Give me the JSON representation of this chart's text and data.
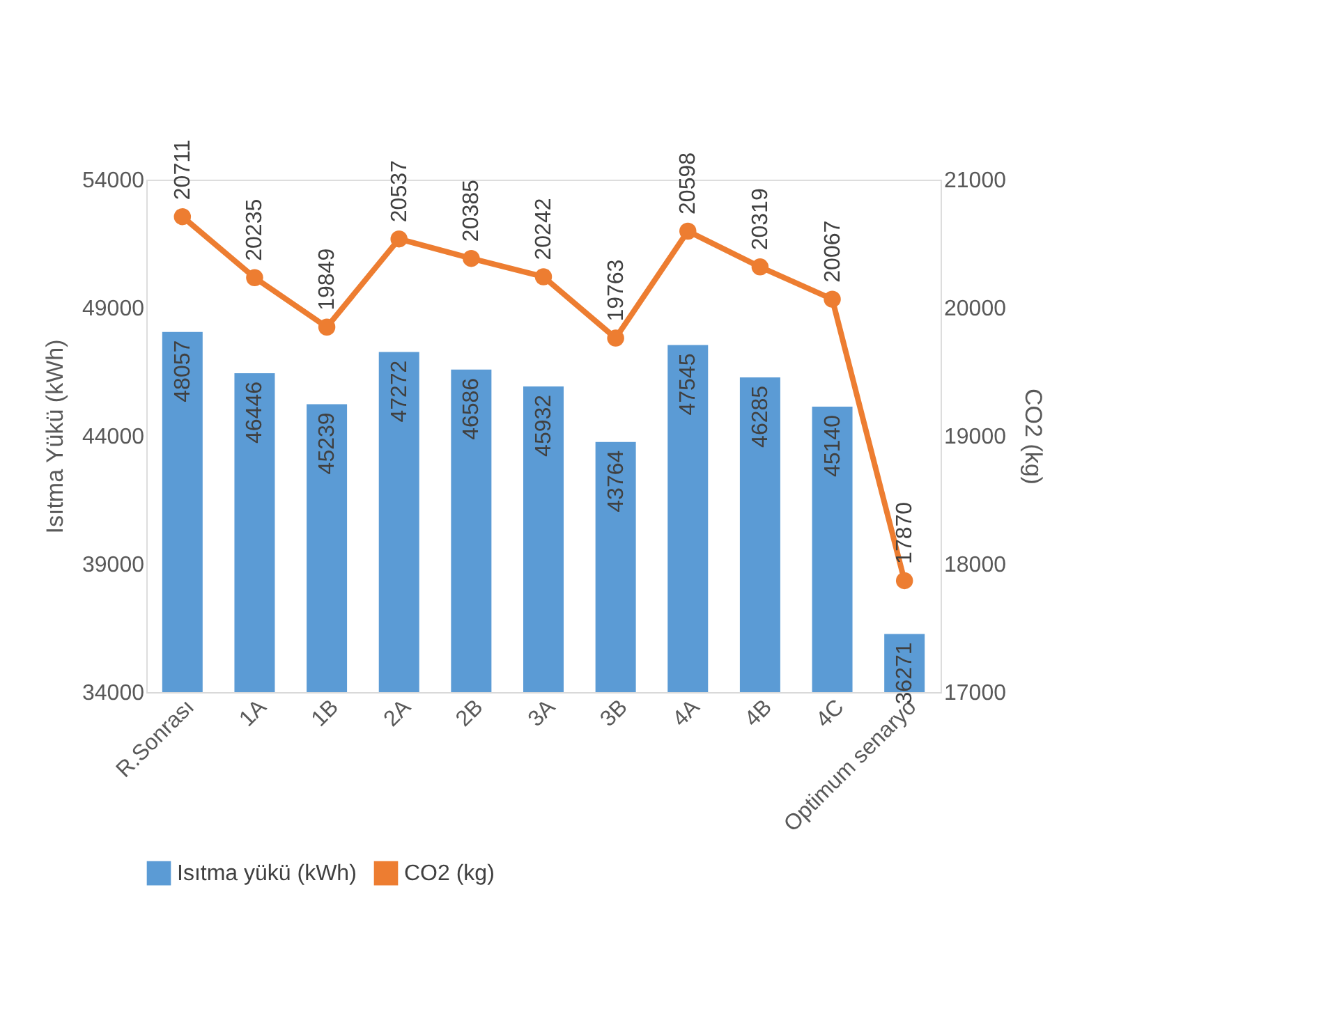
{
  "chart_data": {
    "type": "bar",
    "categories": [
      "R.Sonrası",
      "1A",
      "1B",
      "2A",
      "2B",
      "3A",
      "3B",
      "4A",
      "4B",
      "4C",
      "Optimum senaryo"
    ],
    "series": [
      {
        "name": "Isıtma yükü (kWh)",
        "color": "#5b9bd5",
        "values": [
          48057,
          46446,
          45239,
          47272,
          46586,
          45932,
          43764,
          47545,
          46285,
          45140,
          36271
        ]
      },
      {
        "name": "CO2 (kg)",
        "color": "#ed7d31",
        "type": "line",
        "axis": "y2",
        "marker": "circle",
        "values": [
          20711,
          20235,
          19849,
          20537,
          20385,
          20242,
          19763,
          20598,
          20319,
          20067,
          17870
        ]
      }
    ],
    "ylabel": "Isıtma Yükü (kWh)",
    "y2label": "CO2 (kg)",
    "ylim": [
      34000,
      54000
    ],
    "yticks": [
      34000,
      39000,
      44000,
      49000,
      54000
    ],
    "y2lim": [
      17000,
      21000
    ],
    "y2ticks": [
      17000,
      18000,
      19000,
      20000,
      21000
    ],
    "data_labels": true,
    "legend": "bottom",
    "grid": false
  }
}
